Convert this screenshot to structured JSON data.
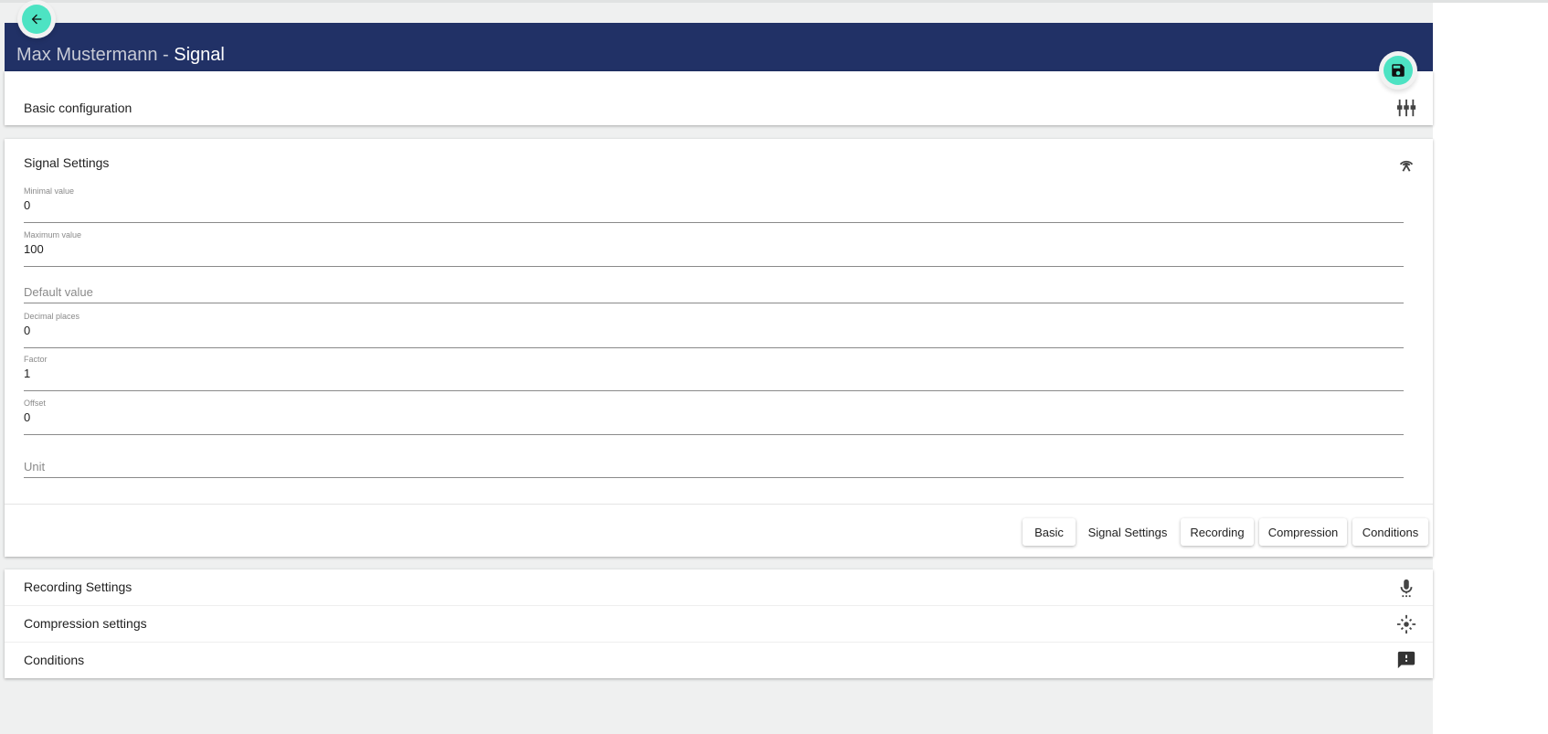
{
  "header": {
    "title_prefix": "Max Mustermann - ",
    "title_main": "Signal"
  },
  "buttons": {
    "back": "back-arrow-icon",
    "save": "floppy-disk-icon"
  },
  "basic": {
    "title": "Basic configuration",
    "icon": "tune-sliders-icon"
  },
  "signal": {
    "title": "Signal Settings",
    "icon": "antenna-icon",
    "fields": [
      {
        "label": "Minimal value",
        "value": "0"
      },
      {
        "label": "Maximum value",
        "value": "100"
      },
      {
        "placeholder": "Default value"
      },
      {
        "label": "Decimal places",
        "value": "0"
      },
      {
        "label": "Factor",
        "value": "1"
      },
      {
        "label": "Offset",
        "value": "0"
      },
      {
        "placeholder": "Unit"
      }
    ],
    "nav": [
      "Basic",
      "Signal Settings",
      "Recording",
      "Compression",
      "Conditions"
    ]
  },
  "sections": [
    {
      "title": "Recording Settings",
      "icon": "microphone-icon"
    },
    {
      "title": "Compression settings",
      "icon": "center-focus-icon"
    },
    {
      "title": "Conditions",
      "icon": "feedback-exclamation-icon"
    }
  ],
  "colors": {
    "header": "#213166",
    "accent": "#4de3c3"
  }
}
